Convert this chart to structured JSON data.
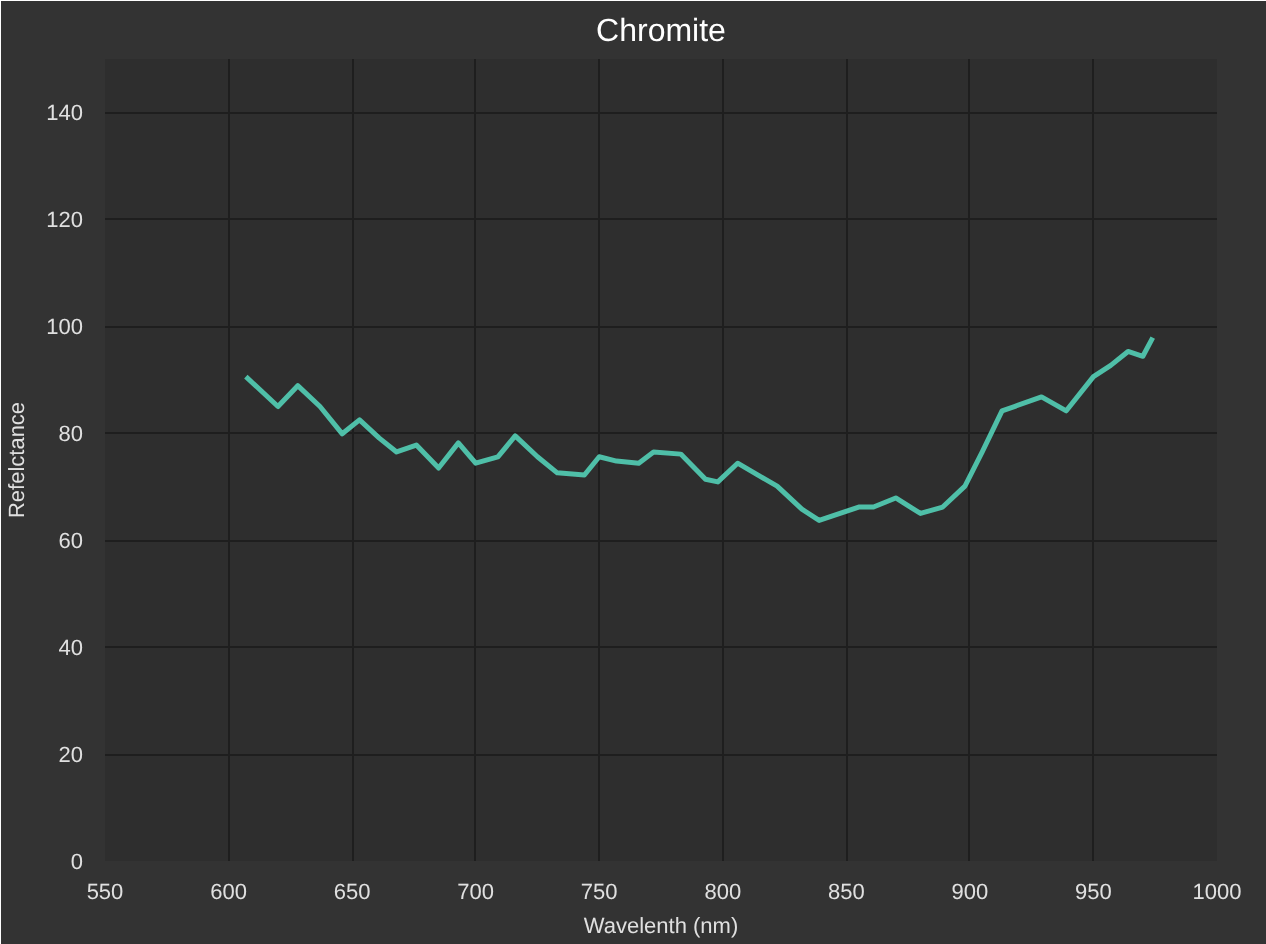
{
  "chart_data": {
    "type": "line",
    "title": "Chromite",
    "xlabel": "Wavelenth (nm)",
    "ylabel": "Refelctance",
    "x": [
      607,
      620,
      628,
      637,
      646,
      653,
      661,
      668,
      676,
      685,
      693,
      700,
      709,
      716,
      725,
      733,
      744,
      750,
      757,
      766,
      772,
      783,
      793,
      798,
      806,
      822,
      832,
      839,
      855,
      861,
      870,
      880,
      889,
      898,
      905,
      913,
      918,
      929,
      939,
      950,
      957,
      964,
      970,
      974
    ],
    "series": [
      {
        "color": "#4fbfa8",
        "values": [
          90.6,
          85.0,
          88.9,
          85.0,
          79.9,
          82.5,
          79.1,
          76.5,
          77.8,
          73.5,
          78.2,
          74.4,
          75.6,
          79.5,
          75.6,
          72.6,
          72.2,
          75.6,
          74.8,
          74.4,
          76.5,
          76.1,
          71.4,
          70.9,
          74.4,
          70.1,
          65.8,
          63.7,
          66.2,
          66.2,
          67.9,
          65.0,
          66.2,
          70.1,
          76.5,
          84.2,
          85.0,
          86.8,
          84.2,
          90.6,
          92.7,
          95.3,
          94.4,
          97.9
        ]
      }
    ],
    "xlim": [
      550,
      1000
    ],
    "xticks": [
      550,
      600,
      650,
      700,
      750,
      800,
      850,
      900,
      950,
      1000
    ],
    "ylim": [
      0,
      150
    ],
    "yticks": [
      0,
      20,
      40,
      60,
      80,
      100,
      120,
      140
    ],
    "grid": true,
    "marker": "none",
    "line_style": "solid"
  }
}
